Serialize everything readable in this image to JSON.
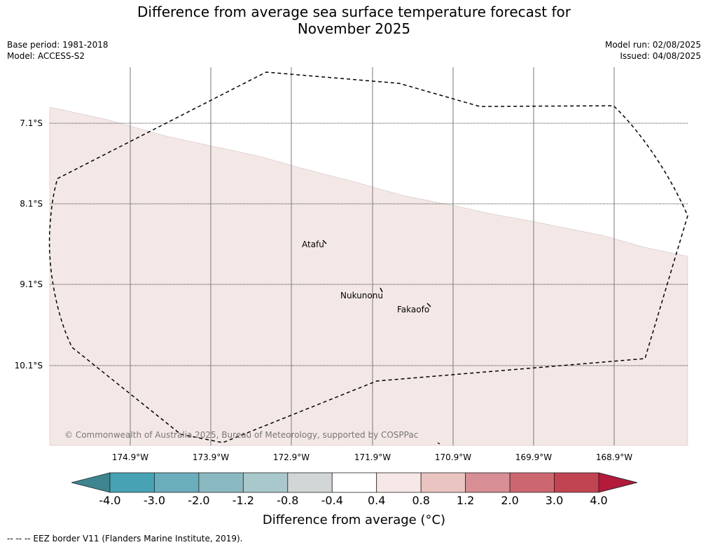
{
  "title_line1": "Difference from average sea surface temperature forecast for",
  "title_line2": "November 2025",
  "base_period": "Base period: 1981-2018",
  "model": "Model: ACCESS-S2",
  "model_run": "Model run: 02/08/2025",
  "issued": "Issued: 04/08/2025",
  "lat_labels": [
    "7.1°S",
    "8.1°S",
    "9.1°S",
    "10.1°S"
  ],
  "lon_labels": [
    "174.9°W",
    "173.9°W",
    "172.9°W",
    "171.9°W",
    "170.9°W",
    "169.9°W",
    "168.9°W"
  ],
  "places": [
    "Atafu",
    "Nukunonu",
    "Fakaofo"
  ],
  "copyright": "© Commonwealth of Australia 2025, Bureau of Meteorology, supported by COSPPac",
  "colorbar": {
    "ticks": [
      "-4.0",
      "-3.0",
      "-2.0",
      "-1.2",
      "-0.8",
      "-0.4",
      "0.4",
      "0.8",
      "1.2",
      "2.0",
      "3.0",
      "4.0"
    ],
    "colors": [
      "#3e858f",
      "#47a3b4",
      "#6aaebc",
      "#8ab9c2",
      "#a9c8cc",
      "#d3d6d6",
      "#ffffff",
      "#f6e8e7",
      "#e9c4c1",
      "#d78e95",
      "#cc6770",
      "#c04452",
      "#b31a3b"
    ],
    "label": "Difference from average (°C)"
  },
  "footer": "-- -- -- EEZ border V11 (Flanders Marine Institute, 2019).",
  "map_colors": {
    "anomaly_fill": "#f4e8e7",
    "eez_line": "#000000"
  }
}
